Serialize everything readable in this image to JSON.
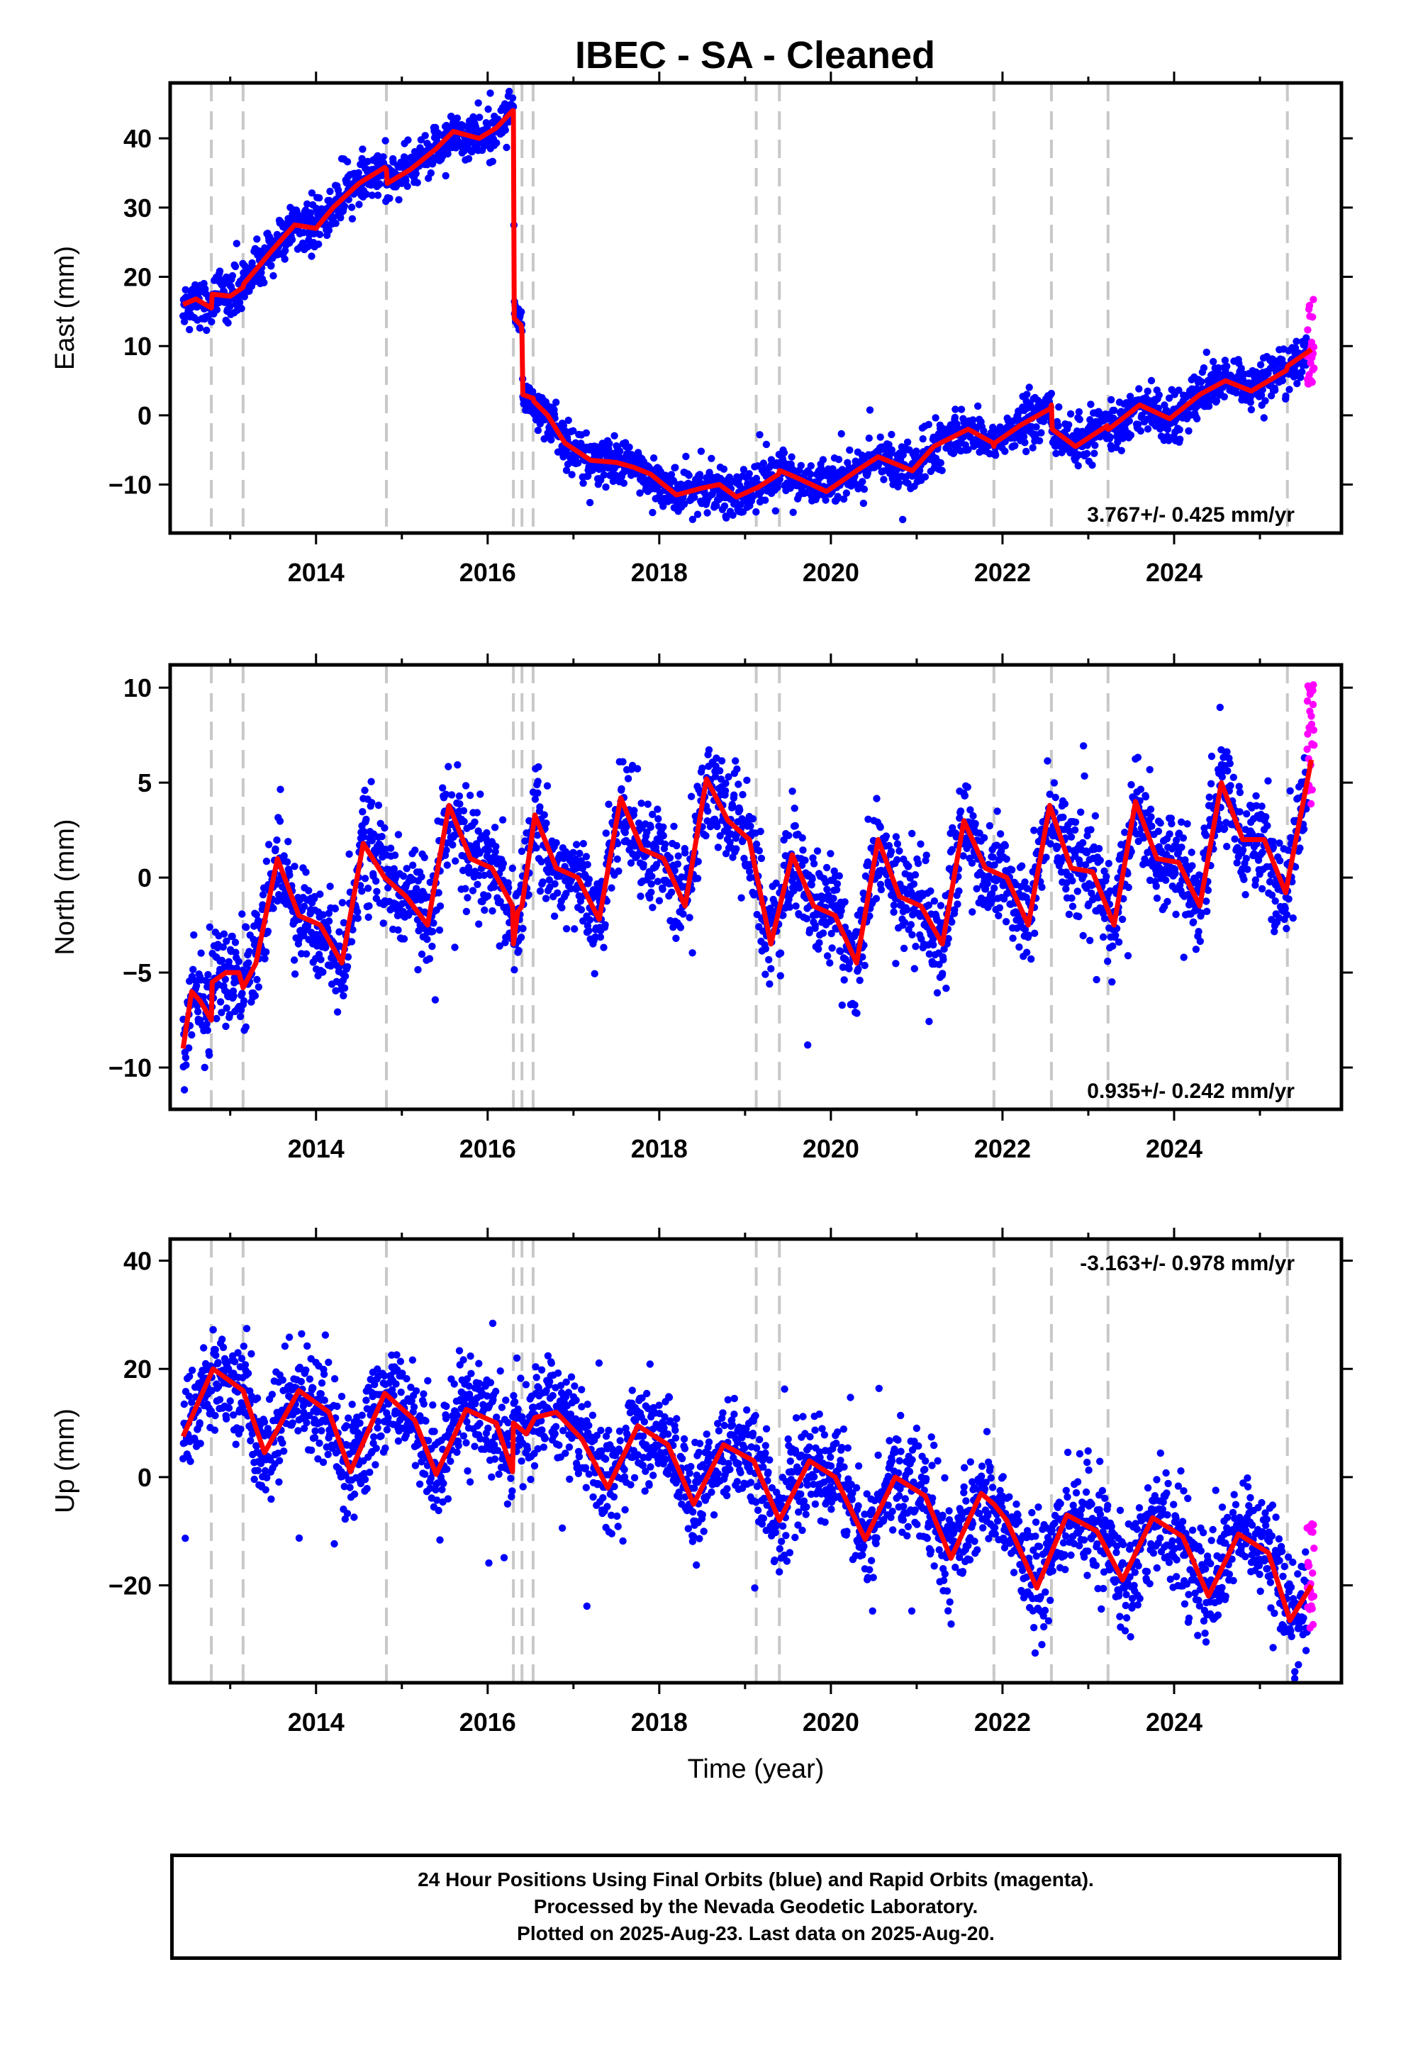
{
  "title": "IBEC  - SA - Cleaned",
  "footer": {
    "line1": "24 Hour Positions Using Final Orbits (blue) and Rapid Orbits (magenta).",
    "line2": "Processed by the Nevada Geodetic Laboratory.",
    "line3": "Plotted on 2025-Aug-23. Last data on 2025-Aug-20."
  },
  "colors": {
    "final_orbits": "#0000ff",
    "rapid_orbits": "#ff00ff",
    "model": "#ff0000",
    "event_lines": "#c8c8c8"
  },
  "chart_data": [
    {
      "type": "scatter",
      "ylabel": "East (mm)",
      "xlabel": "",
      "xlim": [
        2012.3,
        2025.95
      ],
      "ylim": [
        -17,
        48
      ],
      "yticks": [
        -10,
        0,
        10,
        20,
        30,
        40
      ],
      "xticks": [
        2014,
        2016,
        2018,
        2020,
        2022,
        2024
      ],
      "rate_label": "3.767+/- 0.425 mm/yr",
      "rate_label_pos": "bottom-right",
      "grid": false,
      "event_lines": [
        2012.78,
        2013.15,
        2014.82,
        2016.3,
        2016.4,
        2016.53,
        2019.13,
        2019.4,
        2021.9,
        2022.57,
        2023.23,
        2025.32
      ],
      "model": {
        "x": [
          2012.45,
          2012.6,
          2012.78,
          2012.79,
          2013.0,
          2013.15,
          2013.16,
          2013.5,
          2013.75,
          2014.0,
          2014.2,
          2014.5,
          2014.8,
          2014.82,
          2014.83,
          2015.1,
          2015.4,
          2015.6,
          2015.9,
          2016.1,
          2016.29,
          2016.3,
          2016.31,
          2016.39,
          2016.4,
          2016.41,
          2016.52,
          2016.53,
          2016.54,
          2016.7,
          2016.9,
          2017.2,
          2017.5,
          2017.7,
          2017.9,
          2018.2,
          2018.5,
          2018.7,
          2018.9,
          2019.13,
          2019.14,
          2019.39,
          2019.4,
          2019.41,
          2019.6,
          2019.95,
          2020.3,
          2020.55,
          2020.95,
          2021.2,
          2021.6,
          2021.89,
          2021.9,
          2021.91,
          2022.2,
          2022.56,
          2022.57,
          2022.58,
          2022.85,
          2023.22,
          2023.23,
          2023.24,
          2023.6,
          2023.95,
          2024.3,
          2024.6,
          2024.9,
          2025.31,
          2025.32,
          2025.33,
          2025.6
        ],
        "y": [
          16.0,
          16.8,
          15.5,
          17.5,
          17.2,
          18.5,
          19.0,
          24.0,
          27.5,
          27.0,
          30.0,
          33.5,
          35.8,
          35.5,
          33.5,
          35.5,
          38.5,
          41.0,
          40.0,
          41.5,
          44.0,
          44.0,
          14.0,
          13.0,
          12.0,
          3.0,
          2.5,
          2.5,
          2.0,
          0.0,
          -4.0,
          -6.5,
          -6.8,
          -7.5,
          -8.5,
          -11.5,
          -10.5,
          -10.0,
          -11.8,
          -10.5,
          -10.5,
          -8.5,
          -8.0,
          -8.0,
          -9.0,
          -11.0,
          -8.0,
          -6.0,
          -8.0,
          -4.5,
          -2.0,
          -4.0,
          -4.5,
          -4.0,
          -1.5,
          1.0,
          1.5,
          -2.0,
          -4.5,
          -1.5,
          -2.0,
          -2.0,
          1.5,
          -0.5,
          3.0,
          5.0,
          3.5,
          6.5,
          7.0,
          7.2,
          9.5
        ]
      },
      "rapid": {
        "x_start": 2025.55,
        "x_end": 2025.63,
        "center": 11.0,
        "spread": 6.5,
        "count": 24
      },
      "final_count": 2600,
      "final_noise_mm": 1.6
    },
    {
      "type": "scatter",
      "ylabel": "North (mm)",
      "xlabel": "",
      "xlim": [
        2012.3,
        2025.95
      ],
      "ylim": [
        -12.2,
        11.2
      ],
      "yticks": [
        -10,
        -5,
        0,
        5,
        10
      ],
      "xticks": [
        2014,
        2016,
        2018,
        2020,
        2022,
        2024
      ],
      "rate_label": "0.935+/- 0.242 mm/yr",
      "rate_label_pos": "bottom-right",
      "grid": false,
      "event_lines": [
        2012.78,
        2013.15,
        2014.82,
        2016.3,
        2016.4,
        2016.53,
        2019.13,
        2019.4,
        2021.9,
        2022.57,
        2023.23,
        2025.32
      ],
      "model": {
        "x": [
          2012.45,
          2012.55,
          2012.65,
          2012.78,
          2012.79,
          2012.95,
          2013.1,
          2013.15,
          2013.3,
          2013.55,
          2013.8,
          2014.05,
          2014.3,
          2014.55,
          2014.8,
          2015.05,
          2015.3,
          2015.55,
          2015.8,
          2016.05,
          2016.29,
          2016.3,
          2016.35,
          2016.4,
          2016.55,
          2016.8,
          2017.05,
          2017.3,
          2017.55,
          2017.8,
          2018.05,
          2018.3,
          2018.55,
          2018.8,
          2019.05,
          2019.3,
          2019.55,
          2019.8,
          2020.05,
          2020.3,
          2020.55,
          2020.8,
          2021.05,
          2021.3,
          2021.55,
          2021.8,
          2022.05,
          2022.3,
          2022.55,
          2022.8,
          2023.05,
          2023.3,
          2023.55,
          2023.8,
          2024.05,
          2024.3,
          2024.55,
          2024.8,
          2025.05,
          2025.3,
          2025.6
        ],
        "y": [
          -9.0,
          -6.0,
          -6.5,
          -7.5,
          -5.5,
          -5.0,
          -5.0,
          -5.8,
          -4.5,
          1.0,
          -2.0,
          -2.5,
          -4.5,
          1.8,
          0.0,
          -1.0,
          -2.5,
          3.8,
          1.0,
          0.5,
          -1.5,
          -3.5,
          -1.8,
          -1.5,
          3.3,
          0.5,
          0.0,
          -2.2,
          4.2,
          1.5,
          1.0,
          -1.5,
          5.2,
          3.0,
          2.0,
          -3.5,
          1.2,
          -1.5,
          -2.0,
          -4.5,
          2.0,
          -1.0,
          -1.5,
          -3.5,
          3.0,
          0.5,
          0.0,
          -2.5,
          3.8,
          0.5,
          0.3,
          -2.5,
          4.0,
          1.0,
          0.8,
          -1.5,
          5.0,
          2.0,
          2.0,
          -0.8,
          6.2
        ]
      },
      "rapid": {
        "x_start": 2025.55,
        "x_end": 2025.63,
        "center": 7.0,
        "spread": 3.2,
        "count": 24
      },
      "final_count": 2600,
      "final_noise_mm": 1.3
    },
    {
      "type": "scatter",
      "ylabel": "Up (mm)",
      "xlabel": "Time (year)",
      "xlim": [
        2012.3,
        2025.95
      ],
      "ylim": [
        -38,
        44
      ],
      "yticks": [
        -20,
        0,
        20,
        40
      ],
      "xticks": [
        2014,
        2016,
        2018,
        2020,
        2022,
        2024
      ],
      "rate_label": "-3.163+/- 0.978 mm/yr",
      "rate_label_pos": "top-right",
      "grid": false,
      "event_lines": [
        2012.78,
        2013.15,
        2014.82,
        2016.3,
        2016.4,
        2016.53,
        2019.13,
        2019.4,
        2021.9,
        2022.57,
        2023.23,
        2025.32
      ],
      "model": {
        "x": [
          2012.45,
          2012.8,
          2013.15,
          2013.4,
          2013.8,
          2014.15,
          2014.4,
          2014.8,
          2015.15,
          2015.4,
          2015.75,
          2016.1,
          2016.29,
          2016.3,
          2016.45,
          2016.55,
          2016.8,
          2017.1,
          2017.4,
          2017.75,
          2018.1,
          2018.4,
          2018.75,
          2019.1,
          2019.4,
          2019.75,
          2020.05,
          2020.4,
          2020.75,
          2021.1,
          2021.4,
          2021.75,
          2021.9,
          2022.05,
          2022.4,
          2022.75,
          2023.1,
          2023.4,
          2023.75,
          2024.1,
          2024.4,
          2024.75,
          2025.1,
          2025.35,
          2025.6
        ],
        "y": [
          7.5,
          20.0,
          16.0,
          4.5,
          16.0,
          12.0,
          1.0,
          15.5,
          10.5,
          0.5,
          12.5,
          10.0,
          1.0,
          10.0,
          8.0,
          11.0,
          12.0,
          7.0,
          -2.0,
          9.5,
          6.0,
          -5.0,
          6.0,
          3.0,
          -8.0,
          3.0,
          0.0,
          -11.5,
          0.0,
          -3.5,
          -15.0,
          -3.0,
          -5.0,
          -8.0,
          -20.5,
          -7.0,
          -10.0,
          -19.0,
          -7.5,
          -11.0,
          -22.0,
          -10.5,
          -14.0,
          -26.5,
          -20.0
        ]
      },
      "rapid": {
        "x_start": 2025.55,
        "x_end": 2025.63,
        "center": -18.0,
        "spread": 10.0,
        "count": 24
      },
      "final_count": 2600,
      "final_noise_mm": 4.8
    }
  ]
}
